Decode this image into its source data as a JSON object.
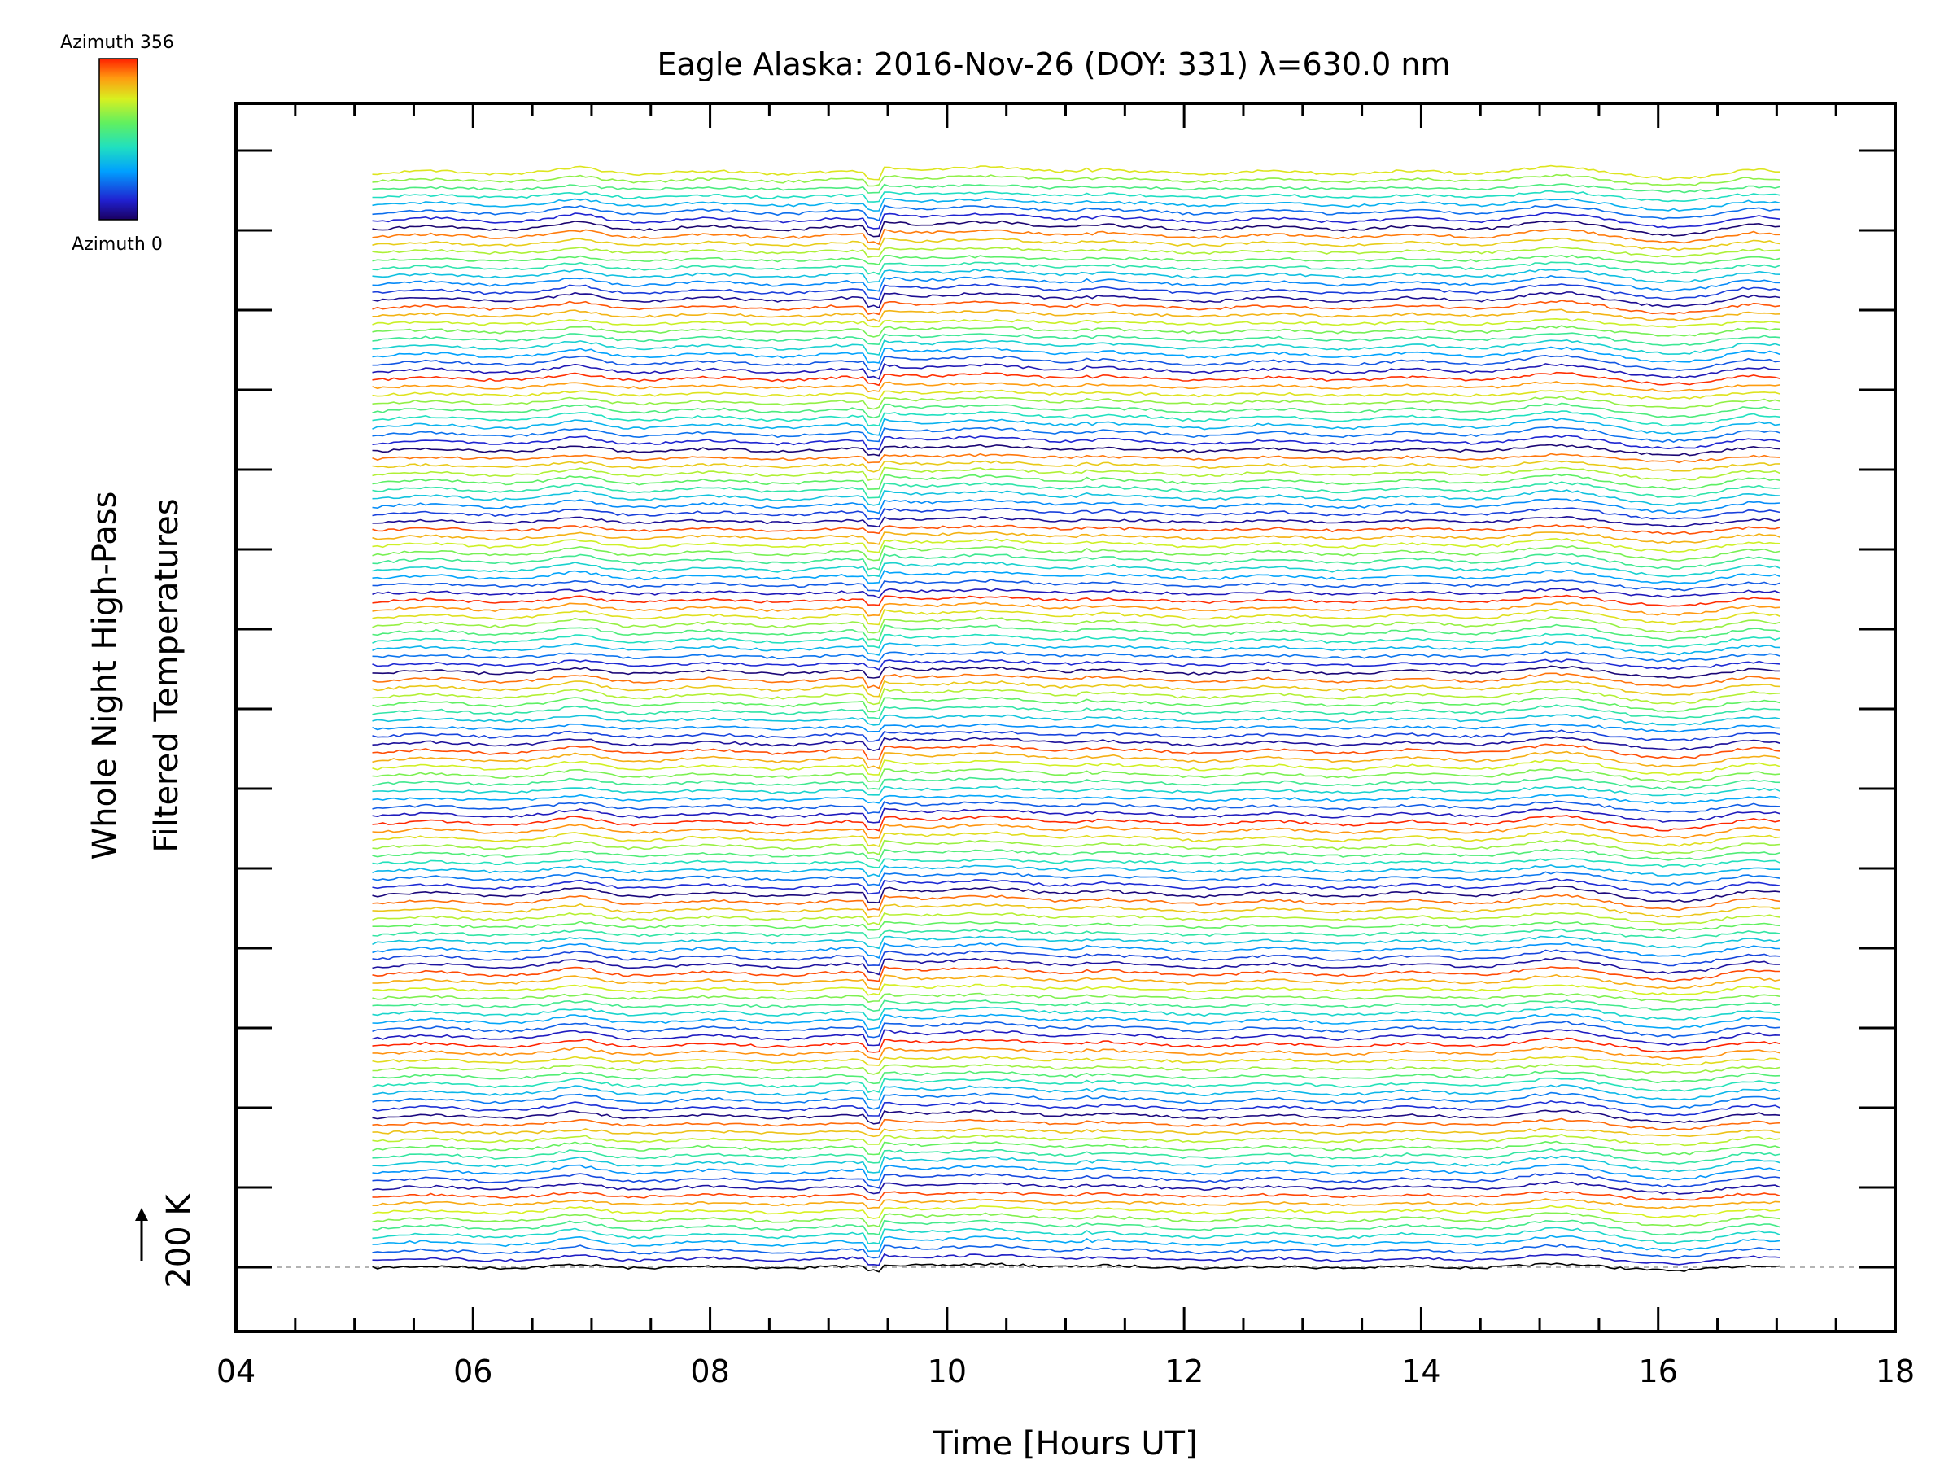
{
  "chart_data": {
    "type": "line",
    "title": "Eagle Alaska: 2016-Nov-26 (DOY: 331) λ=630.0 nm",
    "xlabel": "Time [Hours UT]",
    "ylabel_line1": "Whole Night High-Pass",
    "ylabel_line2": "Filtered Temperatures",
    "xlim": [
      4,
      18
    ],
    "x_tick_labels": [
      "04",
      "06",
      "08",
      "10",
      "12",
      "14",
      "16",
      "18"
    ],
    "x_tick_values": [
      4,
      6,
      8,
      10,
      12,
      14,
      16,
      18
    ],
    "scale_marker": "200 K",
    "colorbar": {
      "top_label": "Azimuth  356",
      "bottom_label": "Azimuth  0",
      "colormap": "rainbow",
      "min": 0,
      "max": 356
    },
    "time_range": [
      5.15,
      17.05
    ],
    "series_count": 139,
    "baseline_dashed": true,
    "feature_times": [
      6.9,
      9.4,
      11.2,
      15.2,
      16.2,
      16.8
    ]
  }
}
